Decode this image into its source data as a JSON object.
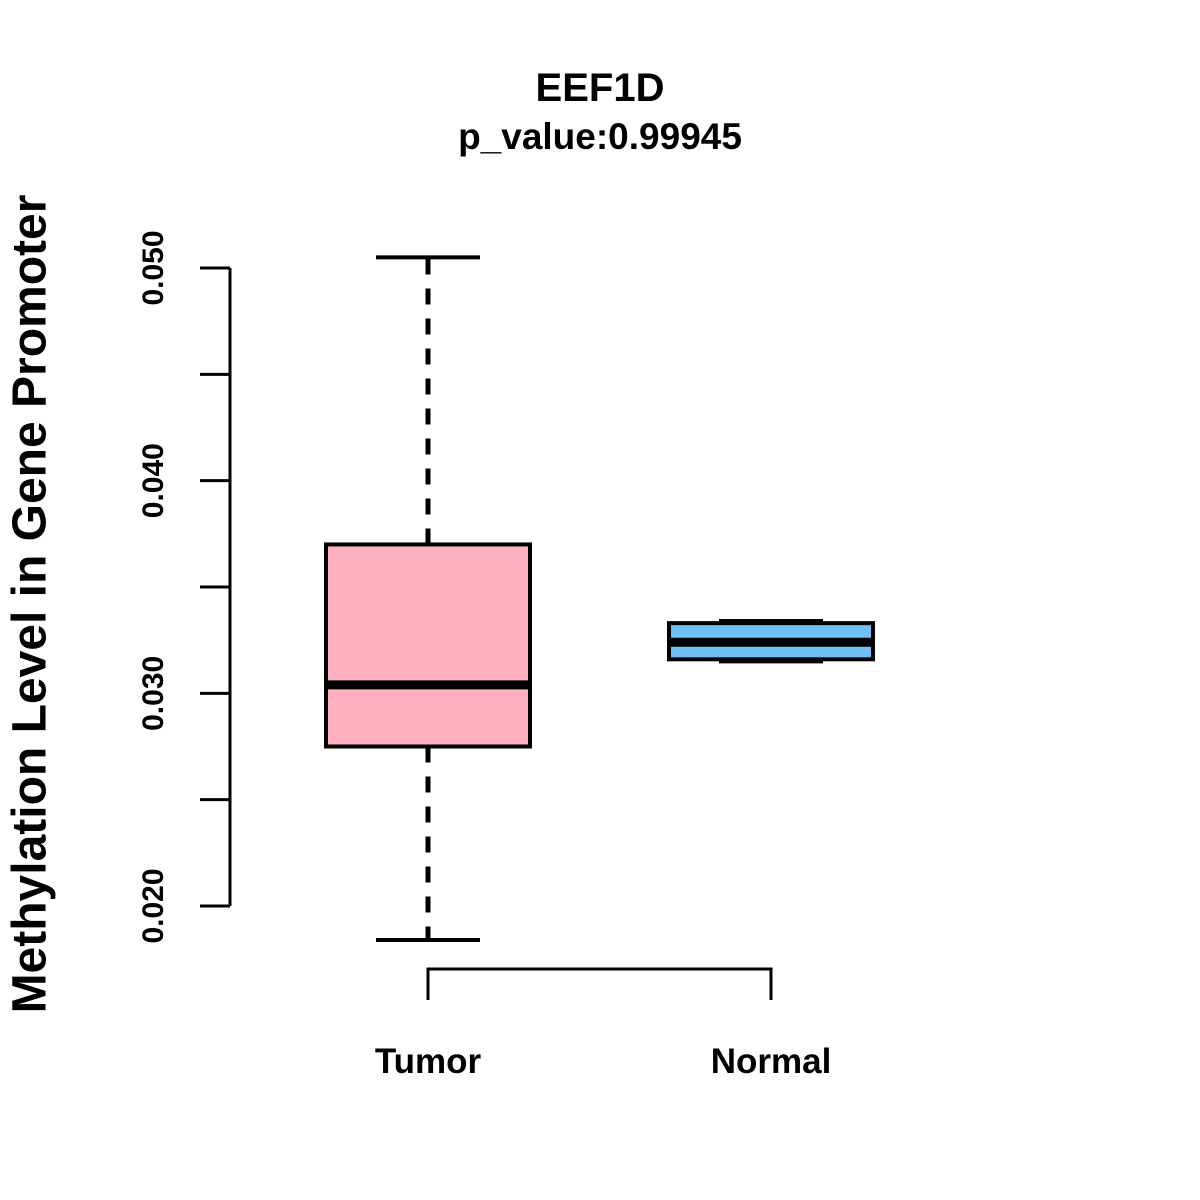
{
  "figure": {
    "gene": "EEF1D",
    "p_value": "0.99945"
  },
  "chart_data": {
    "type": "boxplot",
    "title": "EEF1D",
    "subtitle": "p_value:0.99945",
    "ylabel": "Methylation Level in Gene Promoter",
    "xlabel": "",
    "categories": [
      "Tumor",
      "Normal"
    ],
    "y_axis": {
      "ylim": [
        0.02,
        0.05
      ],
      "major_ticks": [
        0.02,
        0.03,
        0.04,
        0.05
      ],
      "minor_ticks": [
        0.025,
        0.035,
        0.045
      ],
      "tick_labels": [
        "0.020",
        "0.030",
        "0.040",
        "0.050"
      ],
      "grid": false
    },
    "series": [
      {
        "name": "Tumor",
        "box_color": "#FFB1C1",
        "whisker_low": 0.0184,
        "q1": 0.0275,
        "median": 0.0304,
        "q3": 0.037,
        "whisker_high": 0.0505
      },
      {
        "name": "Normal",
        "box_color": "#6EC1F8",
        "whisker_low": 0.0315,
        "q1": 0.0316,
        "median": 0.0324,
        "q3": 0.0333,
        "whisker_high": 0.0334
      }
    ],
    "colors": {
      "stroke": "#000000",
      "background": "#FFFFFF"
    },
    "legend": null
  }
}
